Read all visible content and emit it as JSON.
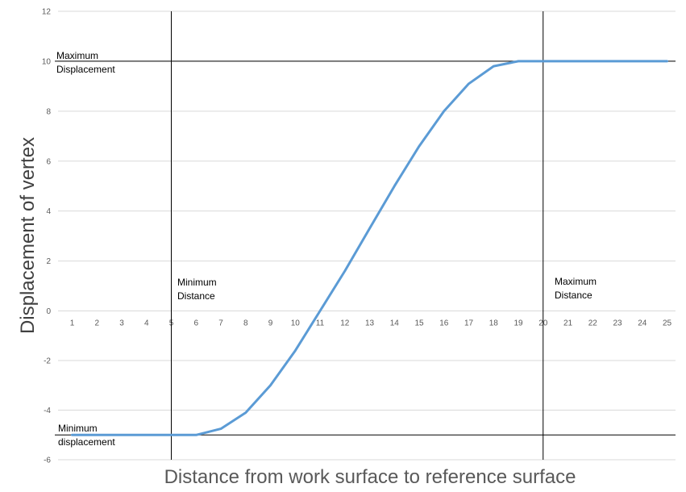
{
  "chart_data": {
    "type": "line",
    "title": "",
    "xlabel": "Distance from  work surface to reference surface",
    "ylabel": "Displacement of vertex",
    "x": [
      1,
      2,
      3,
      4,
      5,
      6,
      7,
      8,
      9,
      10,
      11,
      12,
      13,
      14,
      15,
      16,
      17,
      18,
      19,
      20,
      21,
      22,
      23,
      24,
      25
    ],
    "y_ticks": [
      12,
      10,
      8,
      6,
      4,
      2,
      0,
      -2,
      -4,
      -6
    ],
    "ylim": [
      -6,
      12
    ],
    "grid": "horizontal",
    "series": [
      {
        "color": "#5b9bd5",
        "values": [
          -5,
          -5,
          -5,
          -5,
          -5,
          -5,
          -4.75,
          -4.1,
          -3,
          -1.6,
          0,
          1.6,
          3.3,
          5,
          6.6,
          8,
          9.1,
          9.8,
          10,
          10,
          10,
          10,
          10,
          10,
          10
        ]
      }
    ],
    "reference_lines": {
      "horizontal": [
        10,
        -5
      ],
      "vertical": [
        5,
        20
      ]
    },
    "annotations": {
      "max_displacement_line1": "Maximum",
      "max_displacement_line2": "Displacement",
      "min_displacement_line1": "Minimum",
      "min_displacement_line2": "displacement",
      "min_distance_line1": "Minimum",
      "min_distance_line2": "Distance",
      "max_distance_line1": "Maximum",
      "max_distance_line2": "Distance"
    }
  }
}
